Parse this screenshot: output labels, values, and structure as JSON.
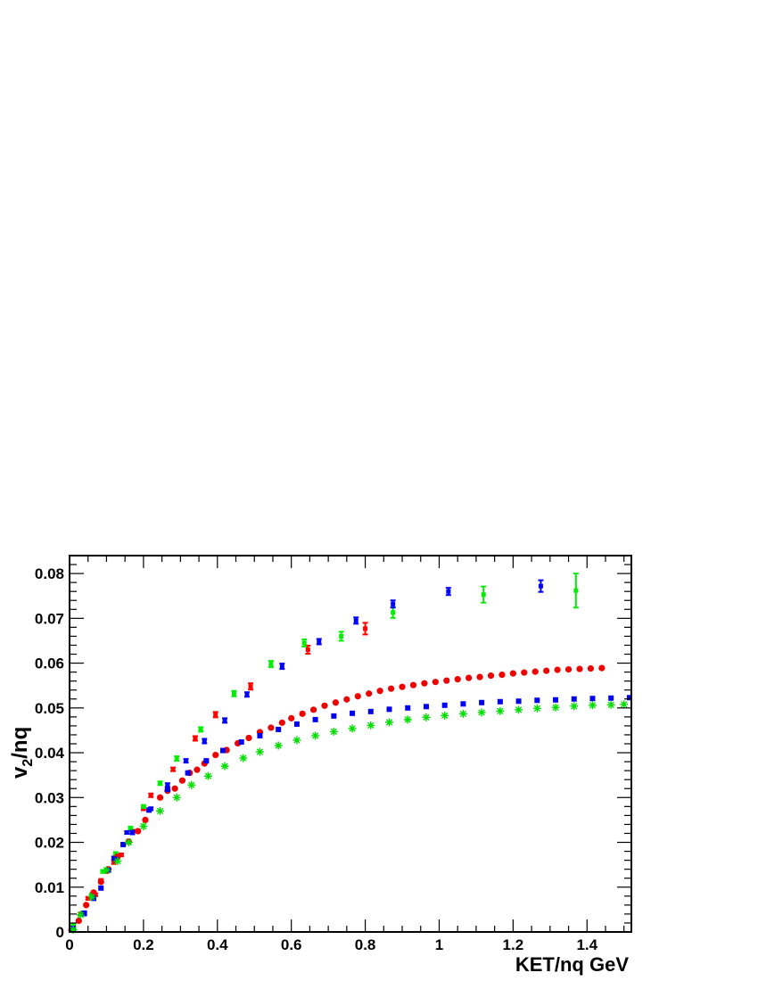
{
  "chart_data": {
    "type": "scatter",
    "title": "",
    "xlabel": "KET/nq GeV",
    "ylabel_main": "v",
    "ylabel_sub": "2",
    "ylabel_rest": "/nq",
    "xlim": [
      0,
      1.52
    ],
    "ylim": [
      0,
      0.084
    ],
    "grid": false,
    "legend": "none",
    "x_ticks": [
      {
        "v": 0,
        "label": "0"
      },
      {
        "v": 0.2,
        "label": "0.2"
      },
      {
        "v": 0.4,
        "label": "0.4"
      },
      {
        "v": 0.6,
        "label": "0.6"
      },
      {
        "v": 0.8,
        "label": "0.8"
      },
      {
        "v": 1.0,
        "label": "1"
      },
      {
        "v": 1.2,
        "label": "1.2"
      },
      {
        "v": 1.4,
        "label": "1.4"
      }
    ],
    "y_ticks": [
      {
        "v": 0,
        "label": "0"
      },
      {
        "v": 0.01,
        "label": "0.01"
      },
      {
        "v": 0.02,
        "label": "0.02"
      },
      {
        "v": 0.03,
        "label": "0.03"
      },
      {
        "v": 0.04,
        "label": "0.04"
      },
      {
        "v": 0.05,
        "label": "0.05"
      },
      {
        "v": 0.06,
        "label": "0.06"
      },
      {
        "v": 0.07,
        "label": "0.07"
      },
      {
        "v": 0.08,
        "label": "0.08"
      }
    ],
    "series": [
      {
        "color": "#ff0000",
        "marker": "square-errorbar",
        "points": [
          [
            0.01,
            0.001,
            0.0003
          ],
          [
            0.03,
            0.004,
            0.0003
          ],
          [
            0.05,
            0.0075,
            0.0003
          ],
          [
            0.07,
            0.0083,
            0.0003
          ],
          [
            0.085,
            0.0115,
            0.0003
          ],
          [
            0.1,
            0.0135,
            0.0003
          ],
          [
            0.12,
            0.0155,
            0.0003
          ],
          [
            0.14,
            0.0172,
            0.0003
          ],
          [
            0.17,
            0.0225,
            0.0003
          ],
          [
            0.2,
            0.0275,
            0.0003
          ],
          [
            0.22,
            0.0305,
            0.0004
          ],
          [
            0.28,
            0.0363,
            0.0004
          ],
          [
            0.34,
            0.0432,
            0.0005
          ],
          [
            0.395,
            0.0485,
            0.0006
          ],
          [
            0.49,
            0.0548,
            0.0007
          ],
          [
            0.645,
            0.063,
            0.0009
          ],
          [
            0.8,
            0.0677,
            0.0013
          ]
        ]
      },
      {
        "color": "#00ee00",
        "marker": "square-errorbar",
        "points": [
          [
            0.01,
            0.0015,
            0.0003
          ],
          [
            0.035,
            0.0042,
            0.0003
          ],
          [
            0.06,
            0.0083,
            0.0003
          ],
          [
            0.09,
            0.0135,
            0.0003
          ],
          [
            0.125,
            0.0175,
            0.0003
          ],
          [
            0.165,
            0.0232,
            0.0003
          ],
          [
            0.2,
            0.028,
            0.0003
          ],
          [
            0.245,
            0.0332,
            0.0004
          ],
          [
            0.29,
            0.0387,
            0.0005
          ],
          [
            0.355,
            0.0452,
            0.0005
          ],
          [
            0.445,
            0.0532,
            0.0006
          ],
          [
            0.545,
            0.0598,
            0.0007
          ],
          [
            0.635,
            0.0645,
            0.0008
          ],
          [
            0.735,
            0.066,
            0.001
          ],
          [
            0.875,
            0.0713,
            0.0012
          ],
          [
            1.12,
            0.0753,
            0.0018
          ],
          [
            1.37,
            0.0762,
            0.0038
          ]
        ]
      },
      {
        "color": "#0000ff",
        "marker": "square-errorbar",
        "points": [
          [
            0.04,
            0.004,
            0.0003
          ],
          [
            0.085,
            0.0112,
            0.0003
          ],
          [
            0.12,
            0.0165,
            0.0003
          ],
          [
            0.155,
            0.0222,
            0.0003
          ],
          [
            0.22,
            0.0275,
            0.0003
          ],
          [
            0.265,
            0.0328,
            0.0004
          ],
          [
            0.315,
            0.0382,
            0.0004
          ],
          [
            0.365,
            0.0426,
            0.0005
          ],
          [
            0.42,
            0.0472,
            0.0005
          ],
          [
            0.48,
            0.053,
            0.0005
          ],
          [
            0.575,
            0.0593,
            0.0006
          ],
          [
            0.675,
            0.0648,
            0.0006
          ],
          [
            0.775,
            0.0695,
            0.0007
          ],
          [
            0.875,
            0.0732,
            0.0008
          ],
          [
            1.025,
            0.076,
            0.0008
          ],
          [
            1.275,
            0.0772,
            0.0013
          ]
        ]
      },
      {
        "color": "#ee0000",
        "marker": "circle",
        "points": [
          [
            0.005,
            0.0005
          ],
          [
            0.025,
            0.0025
          ],
          [
            0.045,
            0.006
          ],
          [
            0.065,
            0.0088
          ],
          [
            0.085,
            0.0112
          ],
          [
            0.105,
            0.014
          ],
          [
            0.13,
            0.0168
          ],
          [
            0.16,
            0.0202
          ],
          [
            0.185,
            0.0225
          ],
          [
            0.205,
            0.025
          ],
          [
            0.245,
            0.03
          ],
          [
            0.265,
            0.0315
          ],
          [
            0.285,
            0.032
          ],
          [
            0.305,
            0.0338
          ],
          [
            0.325,
            0.0355
          ],
          [
            0.345,
            0.0362
          ],
          [
            0.365,
            0.0376
          ],
          [
            0.395,
            0.0395
          ],
          [
            0.425,
            0.0406
          ],
          [
            0.455,
            0.0421
          ],
          [
            0.485,
            0.0433
          ],
          [
            0.515,
            0.0446
          ],
          [
            0.545,
            0.0456
          ],
          [
            0.575,
            0.0467
          ],
          [
            0.6,
            0.0477
          ],
          [
            0.63,
            0.0487
          ],
          [
            0.66,
            0.0496
          ],
          [
            0.69,
            0.0505
          ],
          [
            0.72,
            0.0512
          ],
          [
            0.75,
            0.0519
          ],
          [
            0.78,
            0.0526
          ],
          [
            0.81,
            0.0532
          ],
          [
            0.84,
            0.0538
          ],
          [
            0.87,
            0.0543
          ],
          [
            0.9,
            0.0547
          ],
          [
            0.93,
            0.0551
          ],
          [
            0.96,
            0.0555
          ],
          [
            0.99,
            0.0558
          ],
          [
            1.02,
            0.0561
          ],
          [
            1.05,
            0.0564
          ],
          [
            1.08,
            0.0567
          ],
          [
            1.11,
            0.0569
          ],
          [
            1.14,
            0.0572
          ],
          [
            1.17,
            0.0574
          ],
          [
            1.2,
            0.0577
          ],
          [
            1.23,
            0.0579
          ],
          [
            1.26,
            0.0581
          ],
          [
            1.29,
            0.0583
          ],
          [
            1.32,
            0.0585
          ],
          [
            1.35,
            0.0586
          ],
          [
            1.38,
            0.0587
          ],
          [
            1.41,
            0.0588
          ],
          [
            1.44,
            0.0589
          ]
        ]
      },
      {
        "color": "#0000ee",
        "marker": "square",
        "points": [
          [
            0.01,
            0.0008
          ],
          [
            0.04,
            0.0042
          ],
          [
            0.065,
            0.0075
          ],
          [
            0.085,
            0.0098
          ],
          [
            0.105,
            0.0138
          ],
          [
            0.125,
            0.0162
          ],
          [
            0.145,
            0.0195
          ],
          [
            0.17,
            0.0222
          ],
          [
            0.215,
            0.0272
          ],
          [
            0.265,
            0.0318
          ],
          [
            0.32,
            0.0355
          ],
          [
            0.37,
            0.0382
          ],
          [
            0.415,
            0.0405
          ],
          [
            0.465,
            0.0424
          ],
          [
            0.515,
            0.0438
          ],
          [
            0.565,
            0.0452
          ],
          [
            0.615,
            0.0464
          ],
          [
            0.665,
            0.0474
          ],
          [
            0.715,
            0.0482
          ],
          [
            0.765,
            0.0488
          ],
          [
            0.815,
            0.0492
          ],
          [
            0.865,
            0.0497
          ],
          [
            0.915,
            0.05
          ],
          [
            0.965,
            0.0503
          ],
          [
            1.015,
            0.0506
          ],
          [
            1.065,
            0.0509
          ],
          [
            1.115,
            0.0512
          ],
          [
            1.165,
            0.0514
          ],
          [
            1.215,
            0.0515
          ],
          [
            1.265,
            0.0517
          ],
          [
            1.315,
            0.0518
          ],
          [
            1.365,
            0.052
          ],
          [
            1.415,
            0.0521
          ],
          [
            1.465,
            0.0522
          ],
          [
            1.515,
            0.0523
          ]
        ]
      },
      {
        "color": "#00dd00",
        "marker": "star",
        "points": [
          [
            0.01,
            0.0005
          ],
          [
            0.03,
            0.0038
          ],
          [
            0.06,
            0.0078
          ],
          [
            0.1,
            0.0138
          ],
          [
            0.13,
            0.0158
          ],
          [
            0.16,
            0.02
          ],
          [
            0.2,
            0.0236
          ],
          [
            0.245,
            0.027
          ],
          [
            0.29,
            0.03
          ],
          [
            0.33,
            0.0328
          ],
          [
            0.375,
            0.0348
          ],
          [
            0.42,
            0.037
          ],
          [
            0.47,
            0.0388
          ],
          [
            0.515,
            0.0402
          ],
          [
            0.565,
            0.0416
          ],
          [
            0.615,
            0.0428
          ],
          [
            0.665,
            0.0438
          ],
          [
            0.715,
            0.0447
          ],
          [
            0.765,
            0.0454
          ],
          [
            0.815,
            0.0461
          ],
          [
            0.865,
            0.0468
          ],
          [
            0.915,
            0.0474
          ],
          [
            0.965,
            0.0479
          ],
          [
            1.015,
            0.0483
          ],
          [
            1.065,
            0.0487
          ],
          [
            1.115,
            0.049
          ],
          [
            1.165,
            0.0493
          ],
          [
            1.215,
            0.0496
          ],
          [
            1.265,
            0.0499
          ],
          [
            1.315,
            0.0501
          ],
          [
            1.365,
            0.0504
          ],
          [
            1.415,
            0.0506
          ],
          [
            1.465,
            0.0507
          ],
          [
            1.5,
            0.0508
          ]
        ]
      }
    ]
  }
}
